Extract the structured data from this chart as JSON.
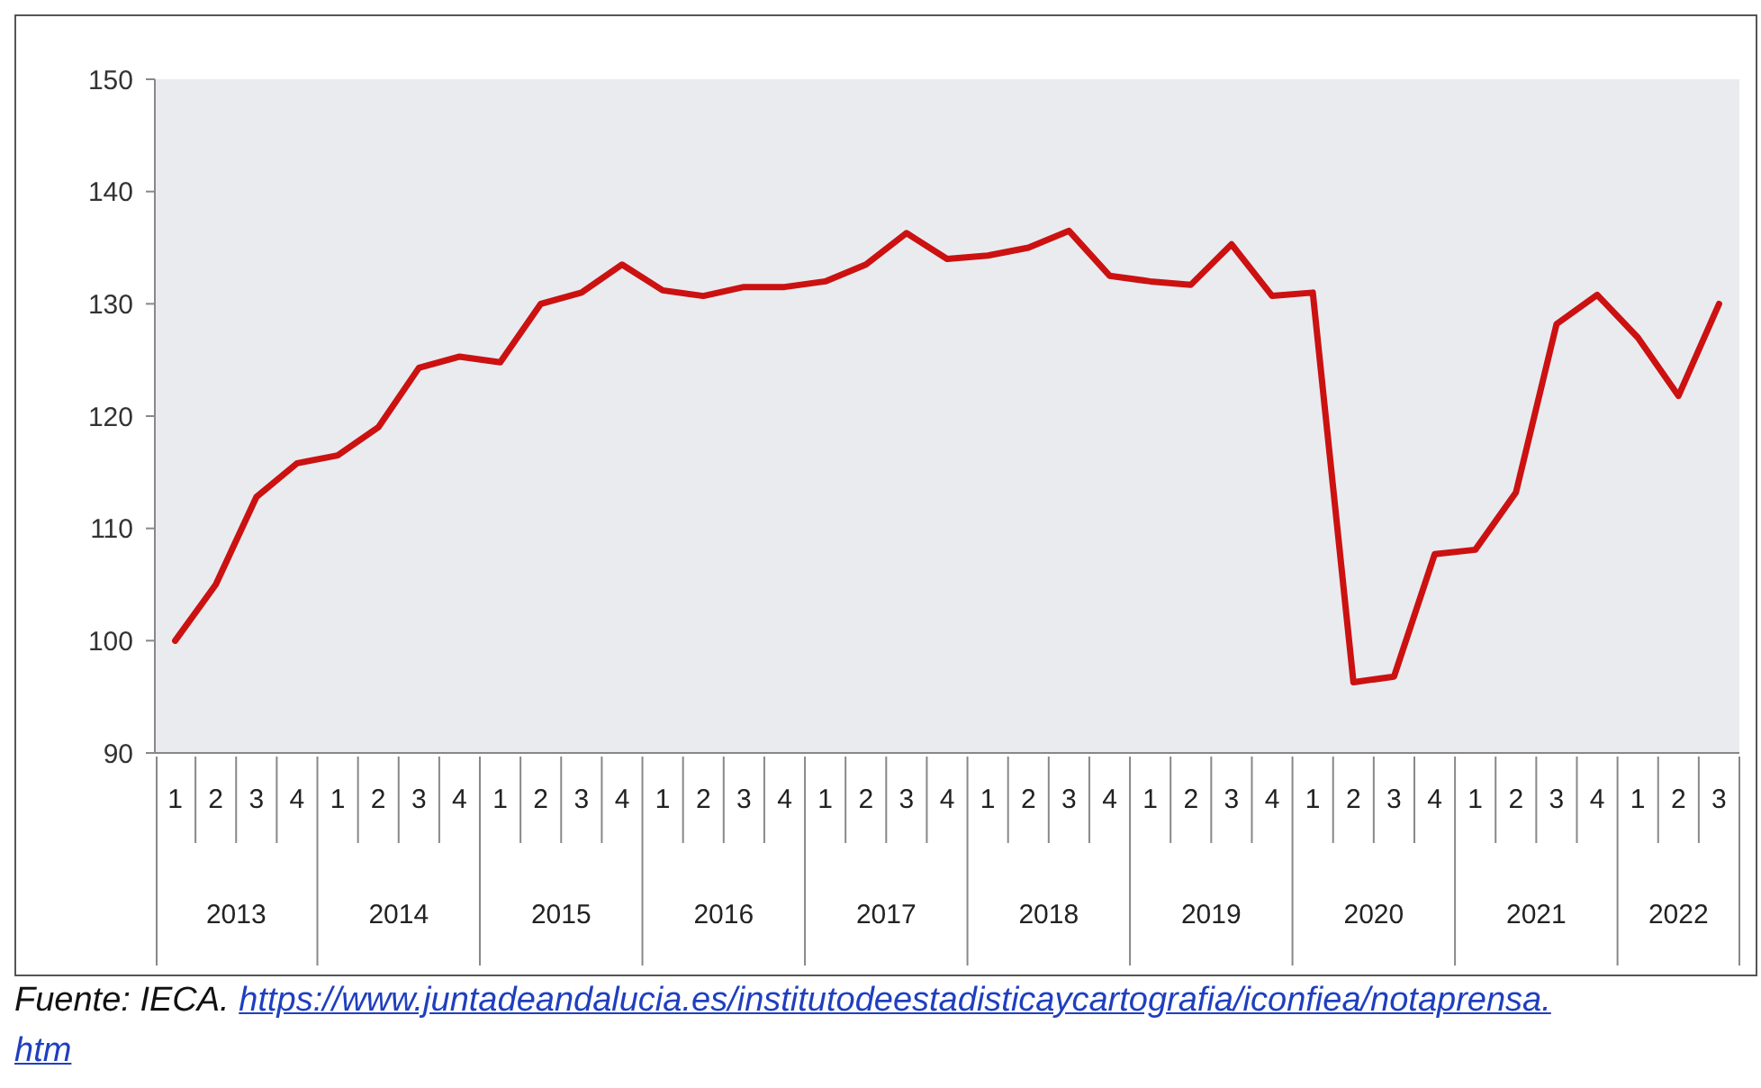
{
  "chart_data": {
    "type": "line",
    "categories": [
      "1",
      "2",
      "3",
      "4",
      "1",
      "2",
      "3",
      "4",
      "1",
      "2",
      "3",
      "4",
      "1",
      "2",
      "3",
      "4",
      "1",
      "2",
      "3",
      "4",
      "1",
      "2",
      "3",
      "4",
      "1",
      "2",
      "3",
      "4",
      "1",
      "2",
      "3",
      "4",
      "1",
      "2",
      "3",
      "4",
      "1",
      "2",
      "3"
    ],
    "series": [
      {
        "color": "#cc1111",
        "values": [
          100,
          105,
          112.8,
          115.8,
          116.5,
          119,
          124.3,
          125.3,
          124.8,
          130,
          131,
          133.5,
          131.2,
          130.7,
          131.5,
          131.5,
          132,
          133.5,
          136.3,
          134,
          134.3,
          135,
          136.5,
          132.5,
          132,
          131.7,
          135.3,
          130.7,
          131,
          96.3,
          96.8,
          107.7,
          108.1,
          113.2,
          128.2,
          130.8,
          127,
          121.8,
          130
        ]
      }
    ],
    "ylim": [
      90,
      150
    ],
    "yticks": [
      90,
      100,
      110,
      120,
      130,
      140,
      150
    ],
    "grid": false,
    "marker": "none",
    "line_style": "solid",
    "annotations": [
      "2013",
      "2014",
      "2015",
      "2016",
      "2017",
      "2018",
      "2019",
      "2020",
      "2021",
      "2022",
      "Fuente: IECA. https://www.juntadeandalucia.es/institutodeestadisticaycartografia/iconfiea/notaprensa.htm"
    ]
  }
}
